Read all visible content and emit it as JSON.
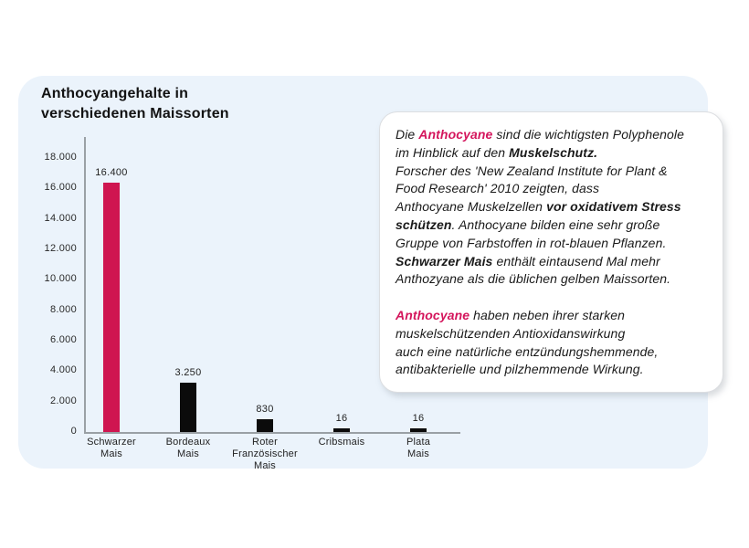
{
  "colors": {
    "accent": "#d4155c",
    "bar_red": "#cf1550",
    "bar_black": "#0b0b0b",
    "axis": "#9aa0a5",
    "panel_bg": "#ebf3fb",
    "text": "#1b1b1b"
  },
  "chart_data": {
    "type": "bar",
    "title": "Anthocyangehalte in\nverschiedenen Maissorten",
    "categories": [
      "Schwarzer\nMais",
      "Bordeaux\nMais",
      "Roter\nFranzösischer\nMais",
      "Cribsmais",
      "Plata\nMais"
    ],
    "values": [
      16400,
      3250,
      830,
      16,
      16
    ],
    "value_labels": [
      "16.400",
      "3.250",
      "830",
      "16",
      "16"
    ],
    "bar_colors": [
      "#cf1550",
      "#0b0b0b",
      "#0b0b0b",
      "#0b0b0b",
      "#0b0b0b"
    ],
    "xlabel": "",
    "ylabel": "",
    "ylim": [
      0,
      18000
    ],
    "ytick_step": 2000,
    "ytick_labels": [
      "0",
      "2.000",
      "4.000",
      "6.000",
      "8.000",
      "10.000",
      "12.000",
      "14.000",
      "16.000",
      "18.000"
    ],
    "grid": false,
    "legend": false
  },
  "note": {
    "lines": [
      {
        "segments": [
          {
            "t": "Die "
          },
          {
            "t": "Anthocyane",
            "accent": true
          },
          {
            "t": " sind die wichtigsten Polyphenole"
          }
        ]
      },
      {
        "segments": [
          {
            "t": "im Hinblick auf den "
          },
          {
            "t": "Muskelschutz.",
            "bold": true
          }
        ]
      },
      {
        "segments": [
          {
            "t": "Forscher des 'New Zealand Institute for Plant &"
          }
        ]
      },
      {
        "segments": [
          {
            "t": "Food Research' 2010 zeigten, dass"
          }
        ]
      },
      {
        "segments": [
          {
            "t": "Anthocyane Muskelzellen "
          },
          {
            "t": "vor oxidativem Stress",
            "bold": true
          }
        ]
      },
      {
        "segments": [
          {
            "t": "schützen",
            "bold": true
          },
          {
            "t": ".  Anthocyane bilden eine sehr große"
          }
        ]
      },
      {
        "segments": [
          {
            "t": "Gruppe von Farbstoffen in rot-blauen Pflanzen."
          }
        ]
      },
      {
        "segments": [
          {
            "t": "Schwarzer Mais",
            "bold": true
          },
          {
            "t": "  enthält eintausend Mal mehr"
          }
        ]
      },
      {
        "segments": [
          {
            "t": "Anthozyane als die üblichen gelben Maissorten."
          }
        ]
      },
      {
        "segments": []
      },
      {
        "segments": [
          {
            "t": "Anthocyane",
            "accent": true
          },
          {
            "t": " haben neben ihrer starken"
          }
        ]
      },
      {
        "segments": [
          {
            "t": "muskelschützenden Antioxidanswirkung"
          }
        ]
      },
      {
        "segments": [
          {
            "t": "auch eine natürliche entzündungshemmende,"
          }
        ]
      },
      {
        "segments": [
          {
            "t": "antibakterielle und pilzhemmende Wirkung."
          }
        ]
      }
    ]
  }
}
